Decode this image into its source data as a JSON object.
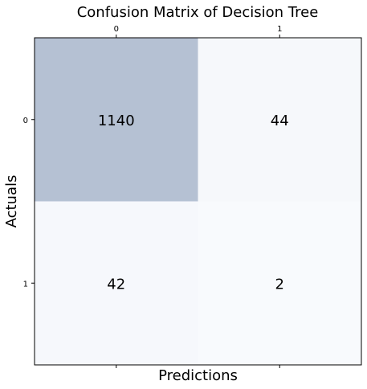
{
  "chart_data": {
    "type": "heatmap",
    "title": "Confusion Matrix of Decision Tree",
    "xlabel": "Predictions",
    "ylabel": "Actuals",
    "x_categories": [
      "0",
      "1"
    ],
    "y_categories": [
      "0",
      "1"
    ],
    "values": [
      [
        1140,
        44
      ],
      [
        42,
        2
      ]
    ],
    "colormap": {
      "low": "#f8fafd",
      "high": "#b5c1d3"
    },
    "x_ticks_position": "top-and-bottom",
    "grid": false,
    "legend": "none"
  }
}
